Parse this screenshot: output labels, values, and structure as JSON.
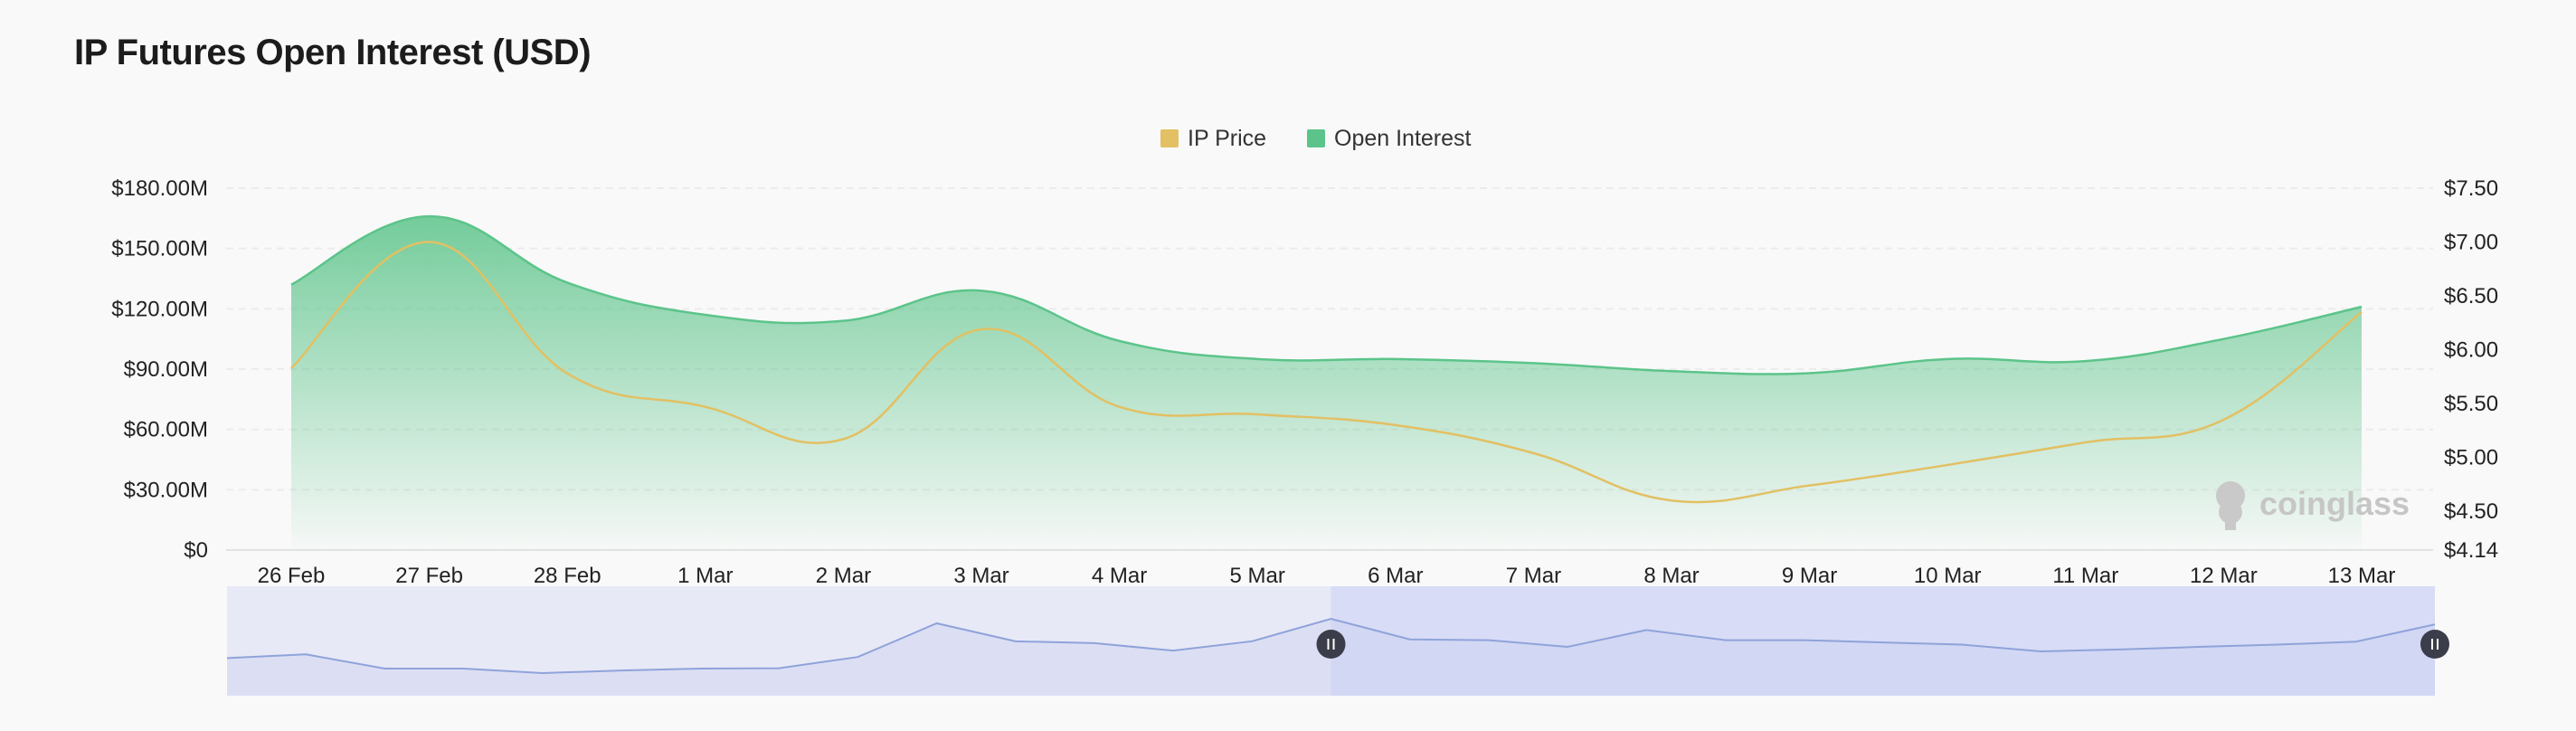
{
  "title": "IP Futures Open Interest (USD)",
  "chart_data": {
    "type": "area",
    "categories": [
      "26 Feb",
      "27 Feb",
      "28 Feb",
      "1 Mar",
      "2 Mar",
      "3 Mar",
      "4 Mar",
      "5 Mar",
      "6 Mar",
      "7 Mar",
      "8 Mar",
      "9 Mar",
      "10 Mar",
      "11 Mar",
      "12 Mar",
      "13 Mar"
    ],
    "series": [
      {
        "name": "Open Interest",
        "axis": "left",
        "color": "#5cc48a",
        "values": [
          132,
          166,
          133,
          117,
          114,
          129,
          104,
          95,
          95,
          93,
          89,
          88,
          95,
          94,
          105,
          121
        ]
      },
      {
        "name": "IP Price",
        "axis": "right",
        "color": "#e2c063",
        "values": [
          5.83,
          7.0,
          5.78,
          5.47,
          5.17,
          6.19,
          5.47,
          5.4,
          5.3,
          5.04,
          4.6,
          4.74,
          4.93,
          5.14,
          5.35,
          6.35
        ]
      }
    ],
    "y_left": {
      "min": 0,
      "max": 180,
      "ticks": [
        "$0",
        "$30.00M",
        "$60.00M",
        "$90.00M",
        "$120.00M",
        "$150.00M",
        "$180.00M"
      ],
      "tick_values": [
        0,
        30,
        60,
        90,
        120,
        150,
        180
      ]
    },
    "y_right": {
      "min": 4.14,
      "max": 7.5,
      "ticks": [
        "$4.14",
        "$4.50",
        "$5.00",
        "$5.50",
        "$6.00",
        "$6.50",
        "$7.00",
        "$7.50"
      ],
      "tick_values": [
        4.14,
        4.5,
        5.0,
        5.5,
        6.0,
        6.5,
        7.0,
        7.5
      ]
    },
    "grid": true,
    "legend_position": "top-center"
  },
  "watermark": "coinglass",
  "colors": {
    "oi_line": "#5cc48a",
    "price_line": "#e2c063",
    "navigator_fill": "#e7e9f6",
    "navigator_selected": "#d8dcf6",
    "navigator_line": "#8fa3da",
    "handle": "#3b3d4a"
  },
  "navigator": {
    "values": [
      0.3,
      0.4,
      0.02,
      0.02,
      -0.1,
      -0.03,
      0.02,
      0.03,
      0.33,
      1.23,
      0.75,
      0.7,
      0.5,
      0.75,
      1.35,
      0.8,
      0.78,
      0.6,
      1.05,
      0.78,
      0.78,
      0.72,
      0.66,
      0.48,
      0.53,
      0.6,
      0.66,
      0.74,
      1.2
    ],
    "selection_start": 0.5,
    "selection_end": 1.0
  }
}
